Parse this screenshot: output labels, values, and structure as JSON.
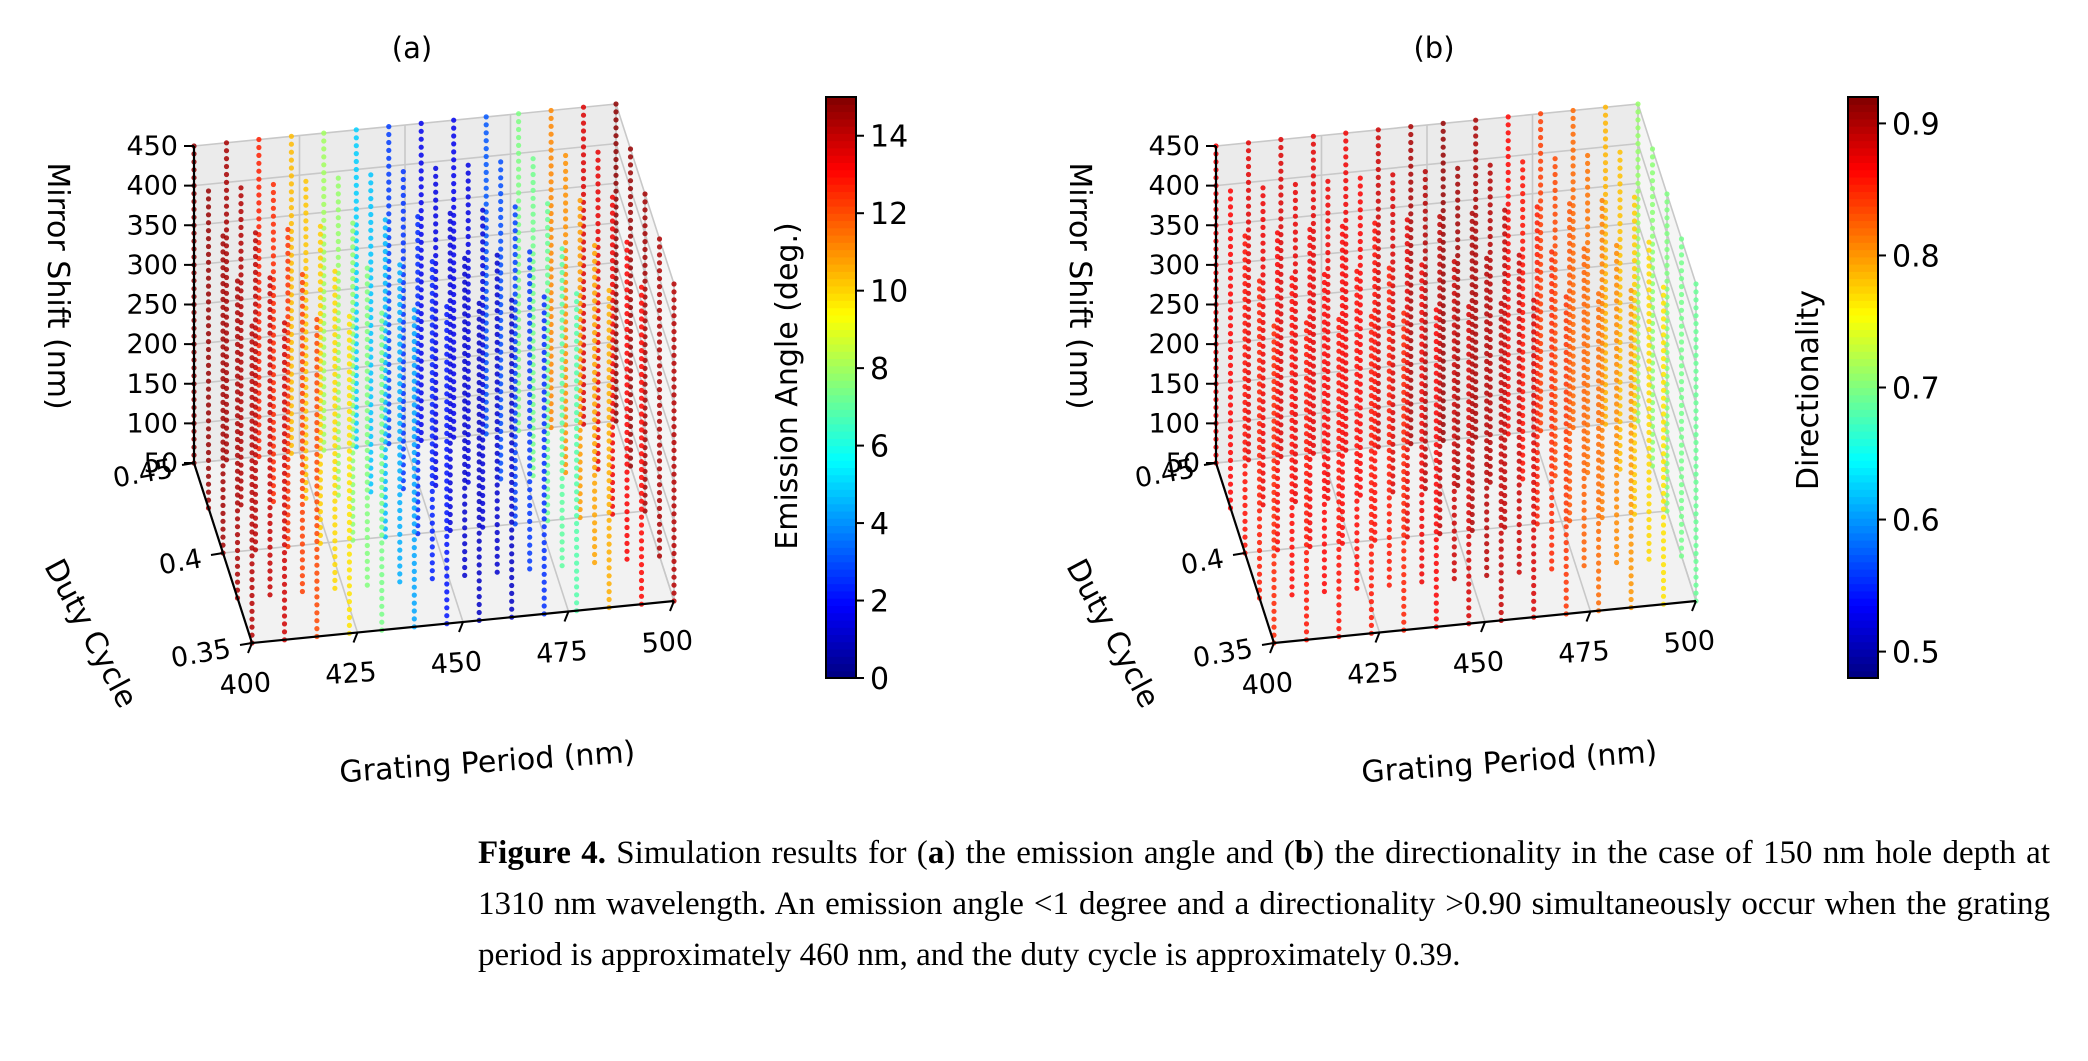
{
  "figure": {
    "panels": [
      {
        "label": "(a)",
        "colorbar": {
          "label": "Emission Angle (deg.)",
          "ticks": [
            "0",
            "2",
            "4",
            "6",
            "8",
            "10",
            "12",
            "14"
          ],
          "range": [
            0,
            15
          ],
          "colormap": "jet"
        }
      },
      {
        "label": "(b)",
        "colorbar": {
          "label": "Directionality",
          "ticks": [
            "0.5",
            "0.6",
            "0.7",
            "0.8",
            "0.9"
          ],
          "range": [
            0.48,
            0.92
          ],
          "colormap": "jet"
        }
      }
    ],
    "caption": {
      "prefix": "Figure 4.",
      "part1": " Simulation results for (",
      "a": "a",
      "part2": ") the emission angle and (",
      "b": "b",
      "part3": ") the directionality in the case of 150 nm hole depth at 1310 nm wavelength. An emission angle <1 degree and a directionality >0.90 simultaneously occur when the grating period is approximately 460 nm, and the duty cycle is approximately 0.39."
    }
  },
  "chart_data": [
    {
      "type": "scatter",
      "title": "(a)",
      "xlabel": "Grating Period (nm)",
      "ylabel": "Duty Cycle",
      "zlabel": "Mirror Shift (nm)",
      "colorbar_label": "Emission Angle (deg.)",
      "x_ticks": [
        "400",
        "425",
        "450",
        "475",
        "500"
      ],
      "y_ticks": [
        "0.35",
        "0.4",
        "0.45"
      ],
      "z_ticks": [
        "50",
        "100",
        "150",
        "200",
        "250",
        "300",
        "350",
        "400",
        "450"
      ],
      "xlim": [
        400,
        500
      ],
      "ylim": [
        0.35,
        0.45
      ],
      "zlim": [
        50,
        450
      ],
      "color_range": [
        0,
        15
      ],
      "approx_colors_by_grating_period": {
        "x": [
          400,
          410,
          420,
          430,
          440,
          450,
          460,
          470,
          480,
          490,
          500
        ],
        "value": [
          14.5,
          14,
          11,
          8,
          4,
          1.5,
          1,
          3,
          9,
          13,
          14.5
        ]
      }
    },
    {
      "type": "scatter",
      "title": "(b)",
      "xlabel": "Grating Period (nm)",
      "ylabel": "Duty Cycle",
      "zlabel": "Mirror Shift (nm)",
      "colorbar_label": "Directionality",
      "x_ticks": [
        "400",
        "425",
        "450",
        "475",
        "500"
      ],
      "y_ticks": [
        "0.35",
        "0.4",
        "0.45"
      ],
      "z_ticks": [
        "50",
        "100",
        "150",
        "200",
        "250",
        "300",
        "350",
        "400",
        "450"
      ],
      "xlim": [
        400,
        500
      ],
      "ylim": [
        0.35,
        0.45
      ],
      "zlim": [
        50,
        450
      ],
      "color_range": [
        0.48,
        0.92
      ],
      "approx_colors_by_grating_period": {
        "x": [
          400,
          410,
          420,
          430,
          440,
          450,
          460,
          470,
          480,
          490,
          500
        ],
        "value": [
          0.86,
          0.87,
          0.87,
          0.86,
          0.88,
          0.9,
          0.9,
          0.85,
          0.82,
          0.8,
          0.7
        ]
      }
    }
  ]
}
